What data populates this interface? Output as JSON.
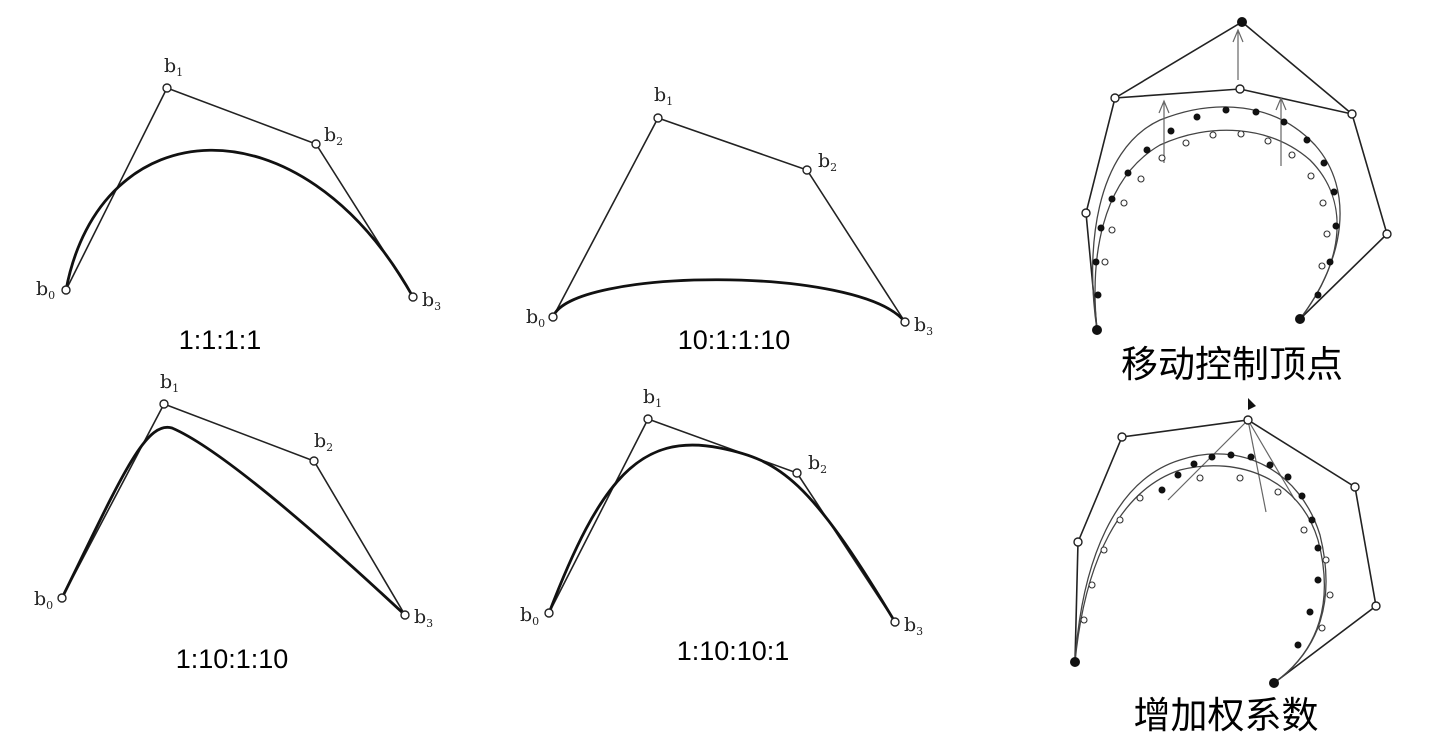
{
  "panels": [
    {
      "id": "tl",
      "caption": "1:1:1:1"
    },
    {
      "id": "tm",
      "caption": "10:1:1:10"
    },
    {
      "id": "bl",
      "caption": "1:10:1:10"
    },
    {
      "id": "bm",
      "caption": "1:10:10:1"
    }
  ],
  "point_labels": {
    "b0": "b",
    "b1": "b",
    "b2": "b",
    "b3": "b",
    "sub0": "0",
    "sub1": "1",
    "sub2": "2",
    "sub3": "3"
  },
  "right_panels": [
    {
      "id": "move",
      "caption": "移动控制顶点"
    },
    {
      "id": "weight",
      "caption": "增加权系数"
    }
  ]
}
